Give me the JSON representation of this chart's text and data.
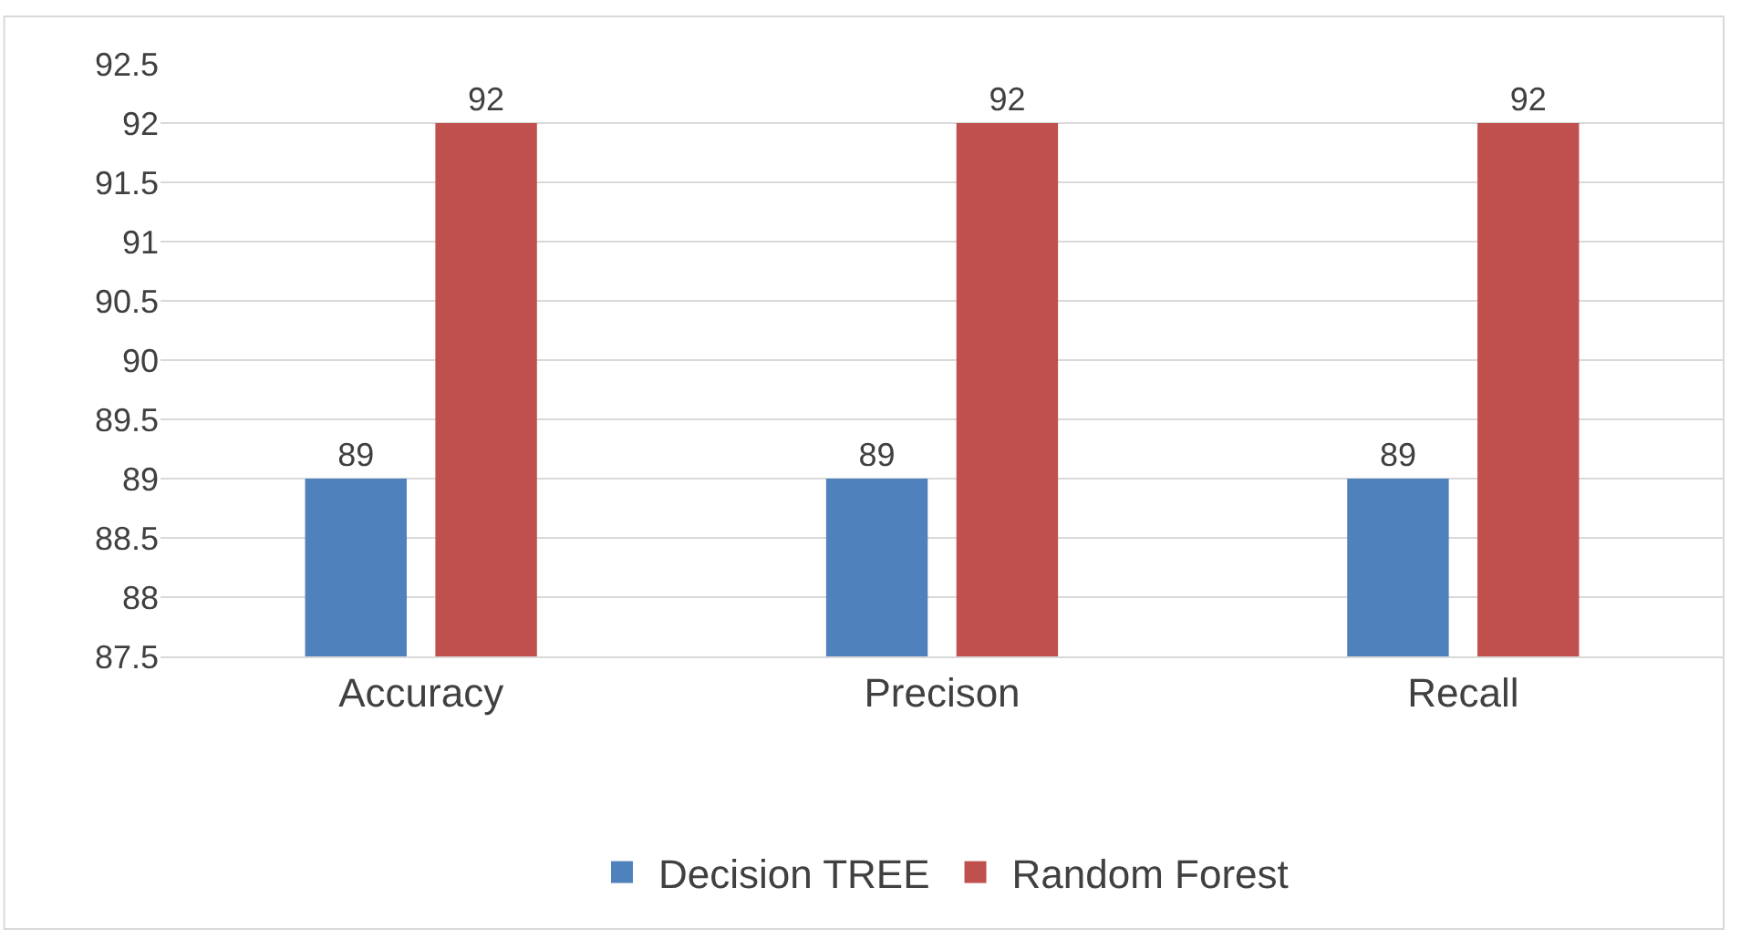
{
  "chart_data": {
    "type": "bar",
    "categories": [
      "Accuracy",
      "Precison",
      "Recall"
    ],
    "series": [
      {
        "name": "Decision TREE",
        "color": "#4f81bd",
        "values": [
          89,
          89,
          89
        ]
      },
      {
        "name": "Random Forest",
        "color": "#c0504d",
        "values": [
          92,
          92,
          92
        ]
      }
    ],
    "ylim": [
      87.5,
      92.5
    ],
    "yticks": [
      87.5,
      88,
      88.5,
      89,
      89.5,
      90,
      90.5,
      91,
      91.5,
      92,
      92.5
    ],
    "grid": "y",
    "legend": "bottom",
    "data_labels": true
  }
}
